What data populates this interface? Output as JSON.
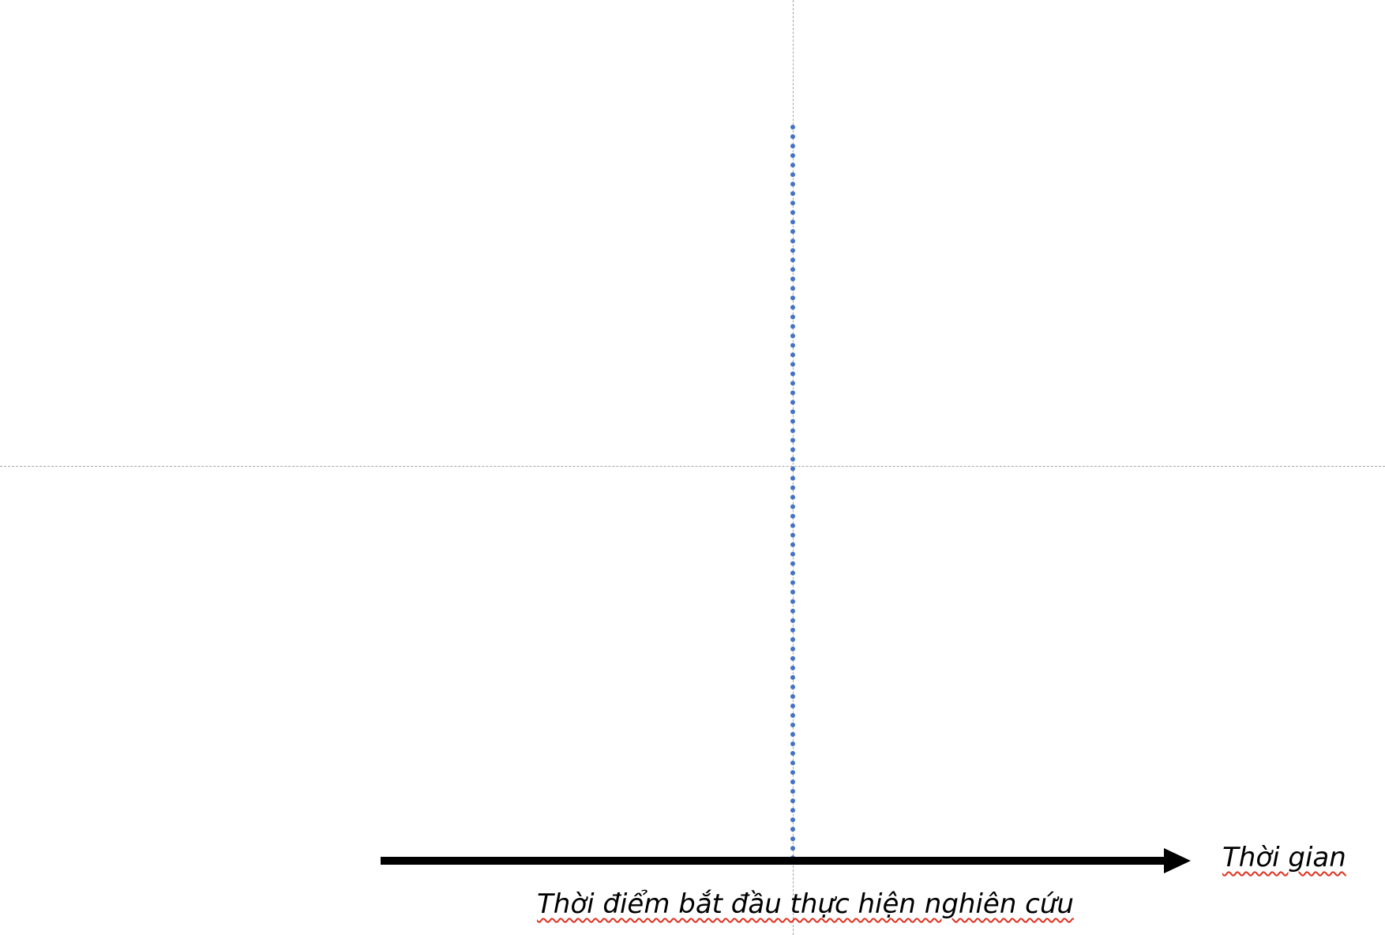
{
  "diagram": {
    "axis_label": "Thời gian",
    "start_label": "Thời điểm bắt đầu thực hiện nghiên cứu",
    "colors": {
      "axis": "#000000",
      "start_line": "#4472c4",
      "guides": "#a6a6a6",
      "spellcheck_underline": "#e0301e"
    }
  }
}
